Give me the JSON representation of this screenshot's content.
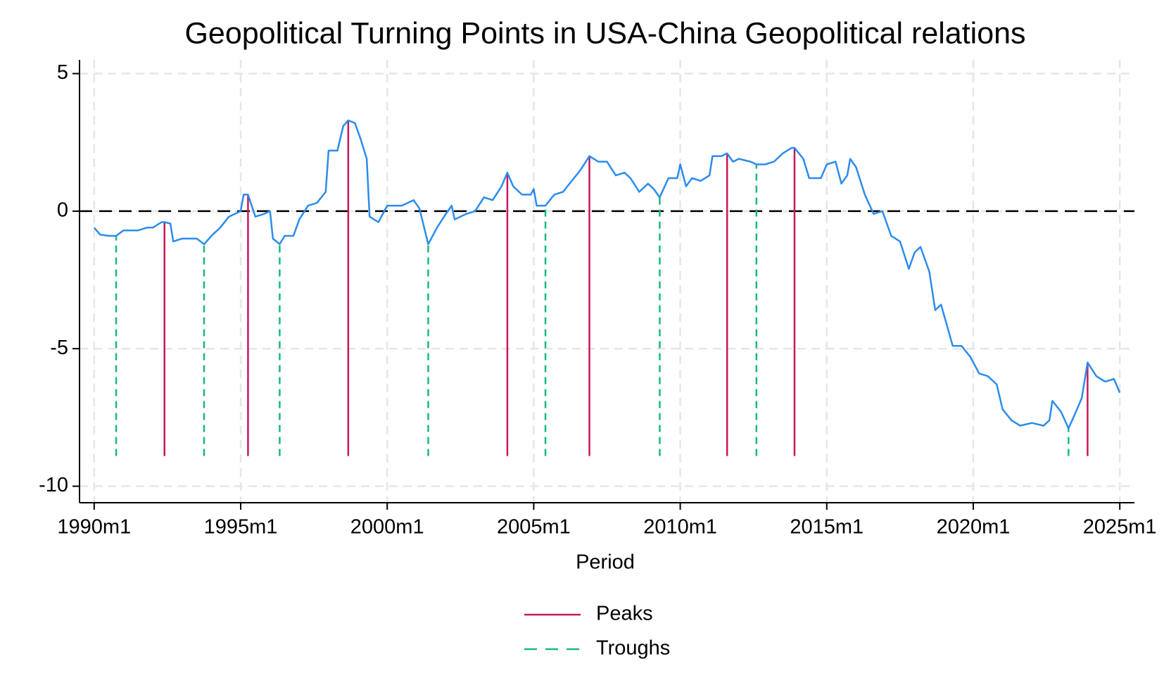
{
  "chart_data": {
    "type": "line",
    "title": "Geopolitical Turning Points in USA-China Geopolitical relations",
    "x_label": "Period",
    "xlim": [
      1989.5,
      2025.5
    ],
    "ylim": [
      -10.6,
      5.5
    ],
    "xticks": [
      {
        "value": 1990,
        "label": "1990m1"
      },
      {
        "value": 1995,
        "label": "1995m1"
      },
      {
        "value": 2000,
        "label": "2000m1"
      },
      {
        "value": 2005,
        "label": "2005m1"
      },
      {
        "value": 2010,
        "label": "2010m1"
      },
      {
        "value": 2015,
        "label": "2015m1"
      },
      {
        "value": 2020,
        "label": "2020m1"
      },
      {
        "value": 2025,
        "label": "2025m1"
      }
    ],
    "yticks": [
      5,
      0,
      -5,
      -10
    ],
    "grid": true,
    "hline": 0,
    "spike_base": -8.9,
    "legend": "bottom",
    "series": [
      {
        "type": "line",
        "color": "#2b8cee",
        "x": [
          1990.0,
          1990.2,
          1990.5,
          1990.75,
          1991.0,
          1991.5,
          1991.8,
          1992.0,
          1992.3,
          1992.4,
          1992.6,
          1992.7,
          1993.0,
          1993.5,
          1993.75,
          1994.0,
          1994.3,
          1994.6,
          1995.0,
          1995.1,
          1995.25,
          1995.5,
          1995.8,
          1996.0,
          1996.1,
          1996.33,
          1996.5,
          1996.8,
          1997.0,
          1997.3,
          1997.6,
          1997.9,
          1998.0,
          1998.3,
          1998.5,
          1998.67,
          1998.9,
          1999.1,
          1999.3,
          1999.4,
          1999.7,
          2000.0,
          2000.5,
          2000.9,
          2001.1,
          2001.4,
          2001.7,
          2002.0,
          2002.2,
          2002.3,
          2002.7,
          2003.0,
          2003.3,
          2003.6,
          2003.9,
          2004.1,
          2004.3,
          2004.6,
          2004.9,
          2005.0,
          2005.1,
          2005.4,
          2005.7,
          2006.0,
          2006.3,
          2006.6,
          2006.9,
          2007.2,
          2007.5,
          2007.8,
          2008.1,
          2008.3,
          2008.6,
          2008.9,
          2009.1,
          2009.3,
          2009.6,
          2009.9,
          2010.0,
          2010.2,
          2010.4,
          2010.7,
          2011.0,
          2011.1,
          2011.4,
          2011.6,
          2011.8,
          2012.0,
          2012.4,
          2012.6,
          2012.9,
          2013.2,
          2013.5,
          2013.8,
          2013.9,
          2014.2,
          2014.4,
          2014.8,
          2015.0,
          2015.3,
          2015.5,
          2015.7,
          2015.8,
          2016.0,
          2016.3,
          2016.6,
          2016.9,
          2017.2,
          2017.5,
          2017.8,
          2018.0,
          2018.2,
          2018.5,
          2018.7,
          2018.9,
          2019.3,
          2019.6,
          2019.9,
          2020.2,
          2020.5,
          2020.8,
          2021.0,
          2021.3,
          2021.6,
          2022.0,
          2022.4,
          2022.6,
          2022.7,
          2023.0,
          2023.25,
          2023.5,
          2023.7,
          2023.9,
          2024.2,
          2024.5,
          2024.8,
          2025.0
        ],
        "values": [
          -0.6,
          -0.85,
          -0.9,
          -0.9,
          -0.7,
          -0.7,
          -0.6,
          -0.6,
          -0.4,
          -0.4,
          -0.45,
          -1.1,
          -1.0,
          -1.0,
          -1.2,
          -0.9,
          -0.6,
          -0.2,
          0.0,
          0.6,
          0.6,
          -0.2,
          -0.1,
          0.0,
          -1.0,
          -1.2,
          -0.9,
          -0.9,
          -0.3,
          0.2,
          0.3,
          0.7,
          2.2,
          2.2,
          3.1,
          3.3,
          3.2,
          2.6,
          1.9,
          -0.2,
          -0.4,
          0.2,
          0.2,
          0.4,
          0.1,
          -1.2,
          -0.6,
          -0.1,
          0.2,
          -0.3,
          -0.1,
          0.0,
          0.5,
          0.4,
          0.9,
          1.4,
          0.9,
          0.6,
          0.6,
          0.8,
          0.2,
          0.2,
          0.6,
          0.7,
          1.1,
          1.5,
          2.0,
          1.8,
          1.8,
          1.3,
          1.4,
          1.2,
          0.7,
          1.0,
          0.8,
          0.5,
          1.2,
          1.2,
          1.7,
          0.9,
          1.2,
          1.1,
          1.3,
          2.0,
          2.0,
          2.1,
          1.8,
          1.9,
          1.8,
          1.7,
          1.7,
          1.8,
          2.1,
          2.3,
          2.3,
          1.9,
          1.2,
          1.2,
          1.7,
          1.8,
          1.0,
          1.3,
          1.9,
          1.6,
          0.6,
          -0.1,
          0.0,
          -0.9,
          -1.1,
          -2.1,
          -1.5,
          -1.3,
          -2.2,
          -3.6,
          -3.4,
          -4.9,
          -4.9,
          -5.3,
          -5.9,
          -6.0,
          -6.3,
          -7.2,
          -7.6,
          -7.8,
          -7.7,
          -7.8,
          -7.6,
          -6.9,
          -7.3,
          -7.9,
          -7.3,
          -6.8,
          -5.5,
          -6.0,
          -6.2,
          -6.1,
          -6.6
        ]
      },
      {
        "type": "spike",
        "name": "Peaks",
        "color": "#c8175d",
        "dash": false,
        "x": [
          1992.4,
          1995.25,
          1998.67,
          2004.1,
          2006.9,
          2011.6,
          2013.9,
          2023.9
        ],
        "values": [
          -0.4,
          0.6,
          3.3,
          1.4,
          2.0,
          2.1,
          2.3,
          -5.5
        ]
      },
      {
        "type": "spike",
        "name": "Troughs",
        "color": "#17b97f",
        "dash": true,
        "x": [
          1990.75,
          1993.75,
          1996.33,
          2001.4,
          2005.4,
          2009.3,
          2012.6,
          2023.25
        ],
        "values": [
          -0.9,
          -1.2,
          -1.2,
          -1.2,
          0.2,
          0.5,
          1.7,
          -7.9
        ]
      }
    ]
  }
}
